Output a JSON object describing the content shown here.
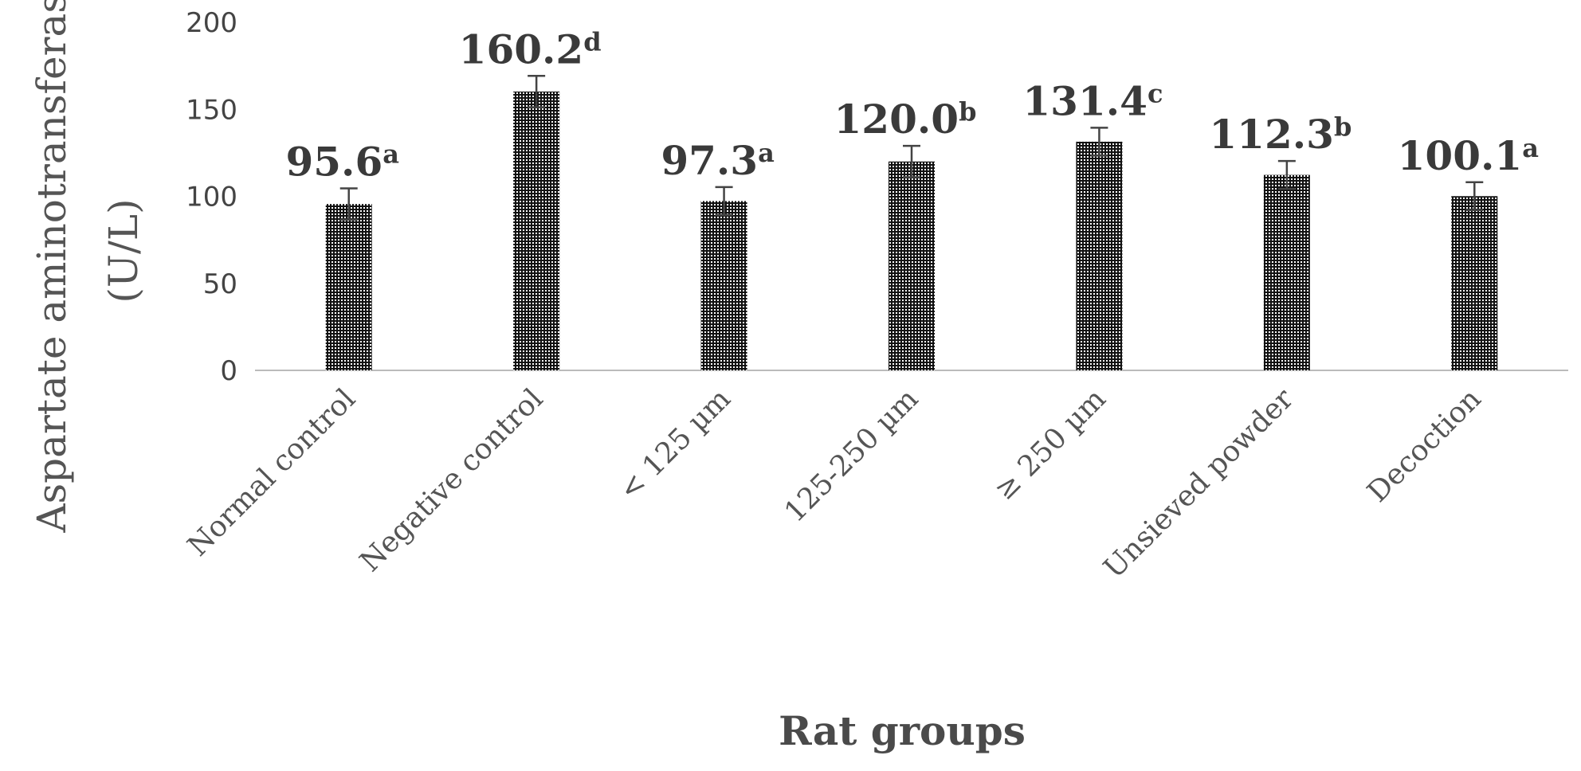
{
  "chart_data": {
    "type": "bar",
    "categories": [
      "Normal control",
      "Negative control",
      "< 125 µm",
      "125-250 µm",
      "≥ 250 µm",
      "Unsieved powder",
      "Decoction"
    ],
    "values": [
      95.6,
      160.2,
      97.3,
      120.0,
      131.4,
      112.3,
      100.1
    ],
    "value_labels": [
      "95.6",
      "160.2",
      "97.3",
      "120.0",
      "131.4",
      "112.3",
      "100.1"
    ],
    "significance_letters": [
      "a",
      "d",
      "a",
      "b",
      "c",
      "b",
      "a"
    ],
    "error": [
      9,
      9,
      8,
      9,
      8,
      8,
      8
    ],
    "ylim": [
      0,
      200
    ],
    "yticks": [
      "0",
      "50",
      "100",
      "150",
      "200"
    ],
    "ylabel_line1": "Aspartate  aminotransferase",
    "ylabel_line2": "(U/L)",
    "xlabel": "Rat groups",
    "grid": false,
    "bar_pattern": "dotted-black"
  }
}
